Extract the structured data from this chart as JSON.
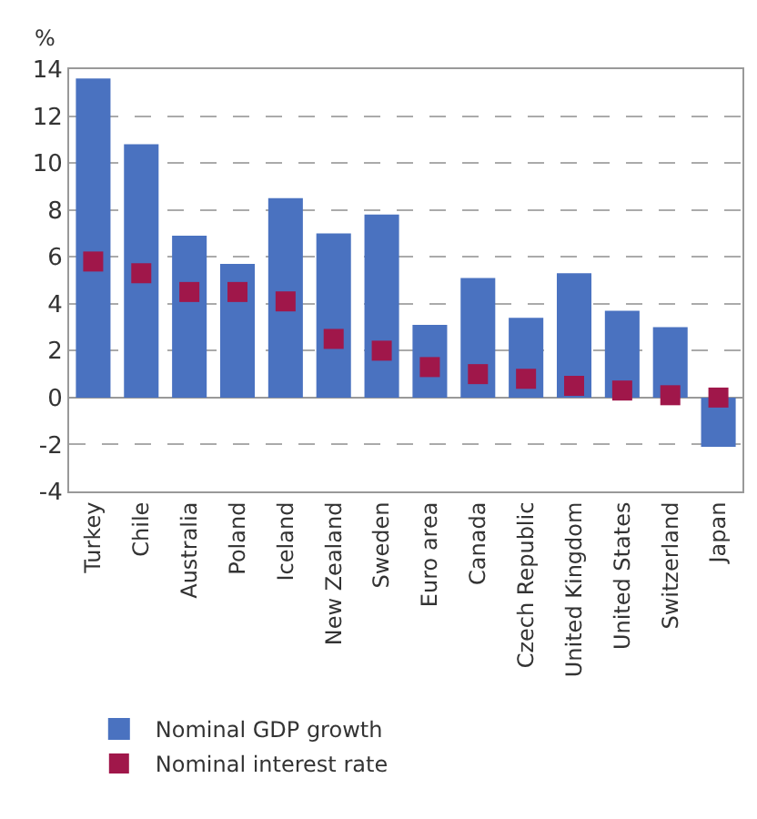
{
  "chart_data": {
    "type": "bar",
    "ylabel": "%",
    "categories": [
      "Turkey",
      "Chile",
      "Australia",
      "Poland",
      "Iceland",
      "New Zealand",
      "Sweden",
      "Euro area",
      "Canada",
      "Czech Republic",
      "United Kingdom",
      "United States",
      "Switzerland",
      "Japan"
    ],
    "series": [
      {
        "name": "Nominal GDP growth",
        "color": "#4a72c0",
        "values": [
          13.6,
          10.8,
          6.9,
          5.7,
          8.5,
          7.0,
          7.8,
          3.1,
          5.1,
          3.4,
          5.3,
          3.7,
          3.0,
          -2.1
        ]
      },
      {
        "name": "Nominal interest rate",
        "type": "scatter",
        "marker": "square",
        "color": "#a0174a",
        "values": [
          5.8,
          5.3,
          4.5,
          4.5,
          4.1,
          2.5,
          2.0,
          1.3,
          1.0,
          0.8,
          0.5,
          0.3,
          0.1,
          0.0
        ]
      }
    ],
    "ylim": [
      -4,
      14
    ],
    "yticks": [
      -4,
      -2,
      0,
      2,
      4,
      6,
      8,
      10,
      12,
      14
    ],
    "grid": "y",
    "legend": "bottom"
  }
}
